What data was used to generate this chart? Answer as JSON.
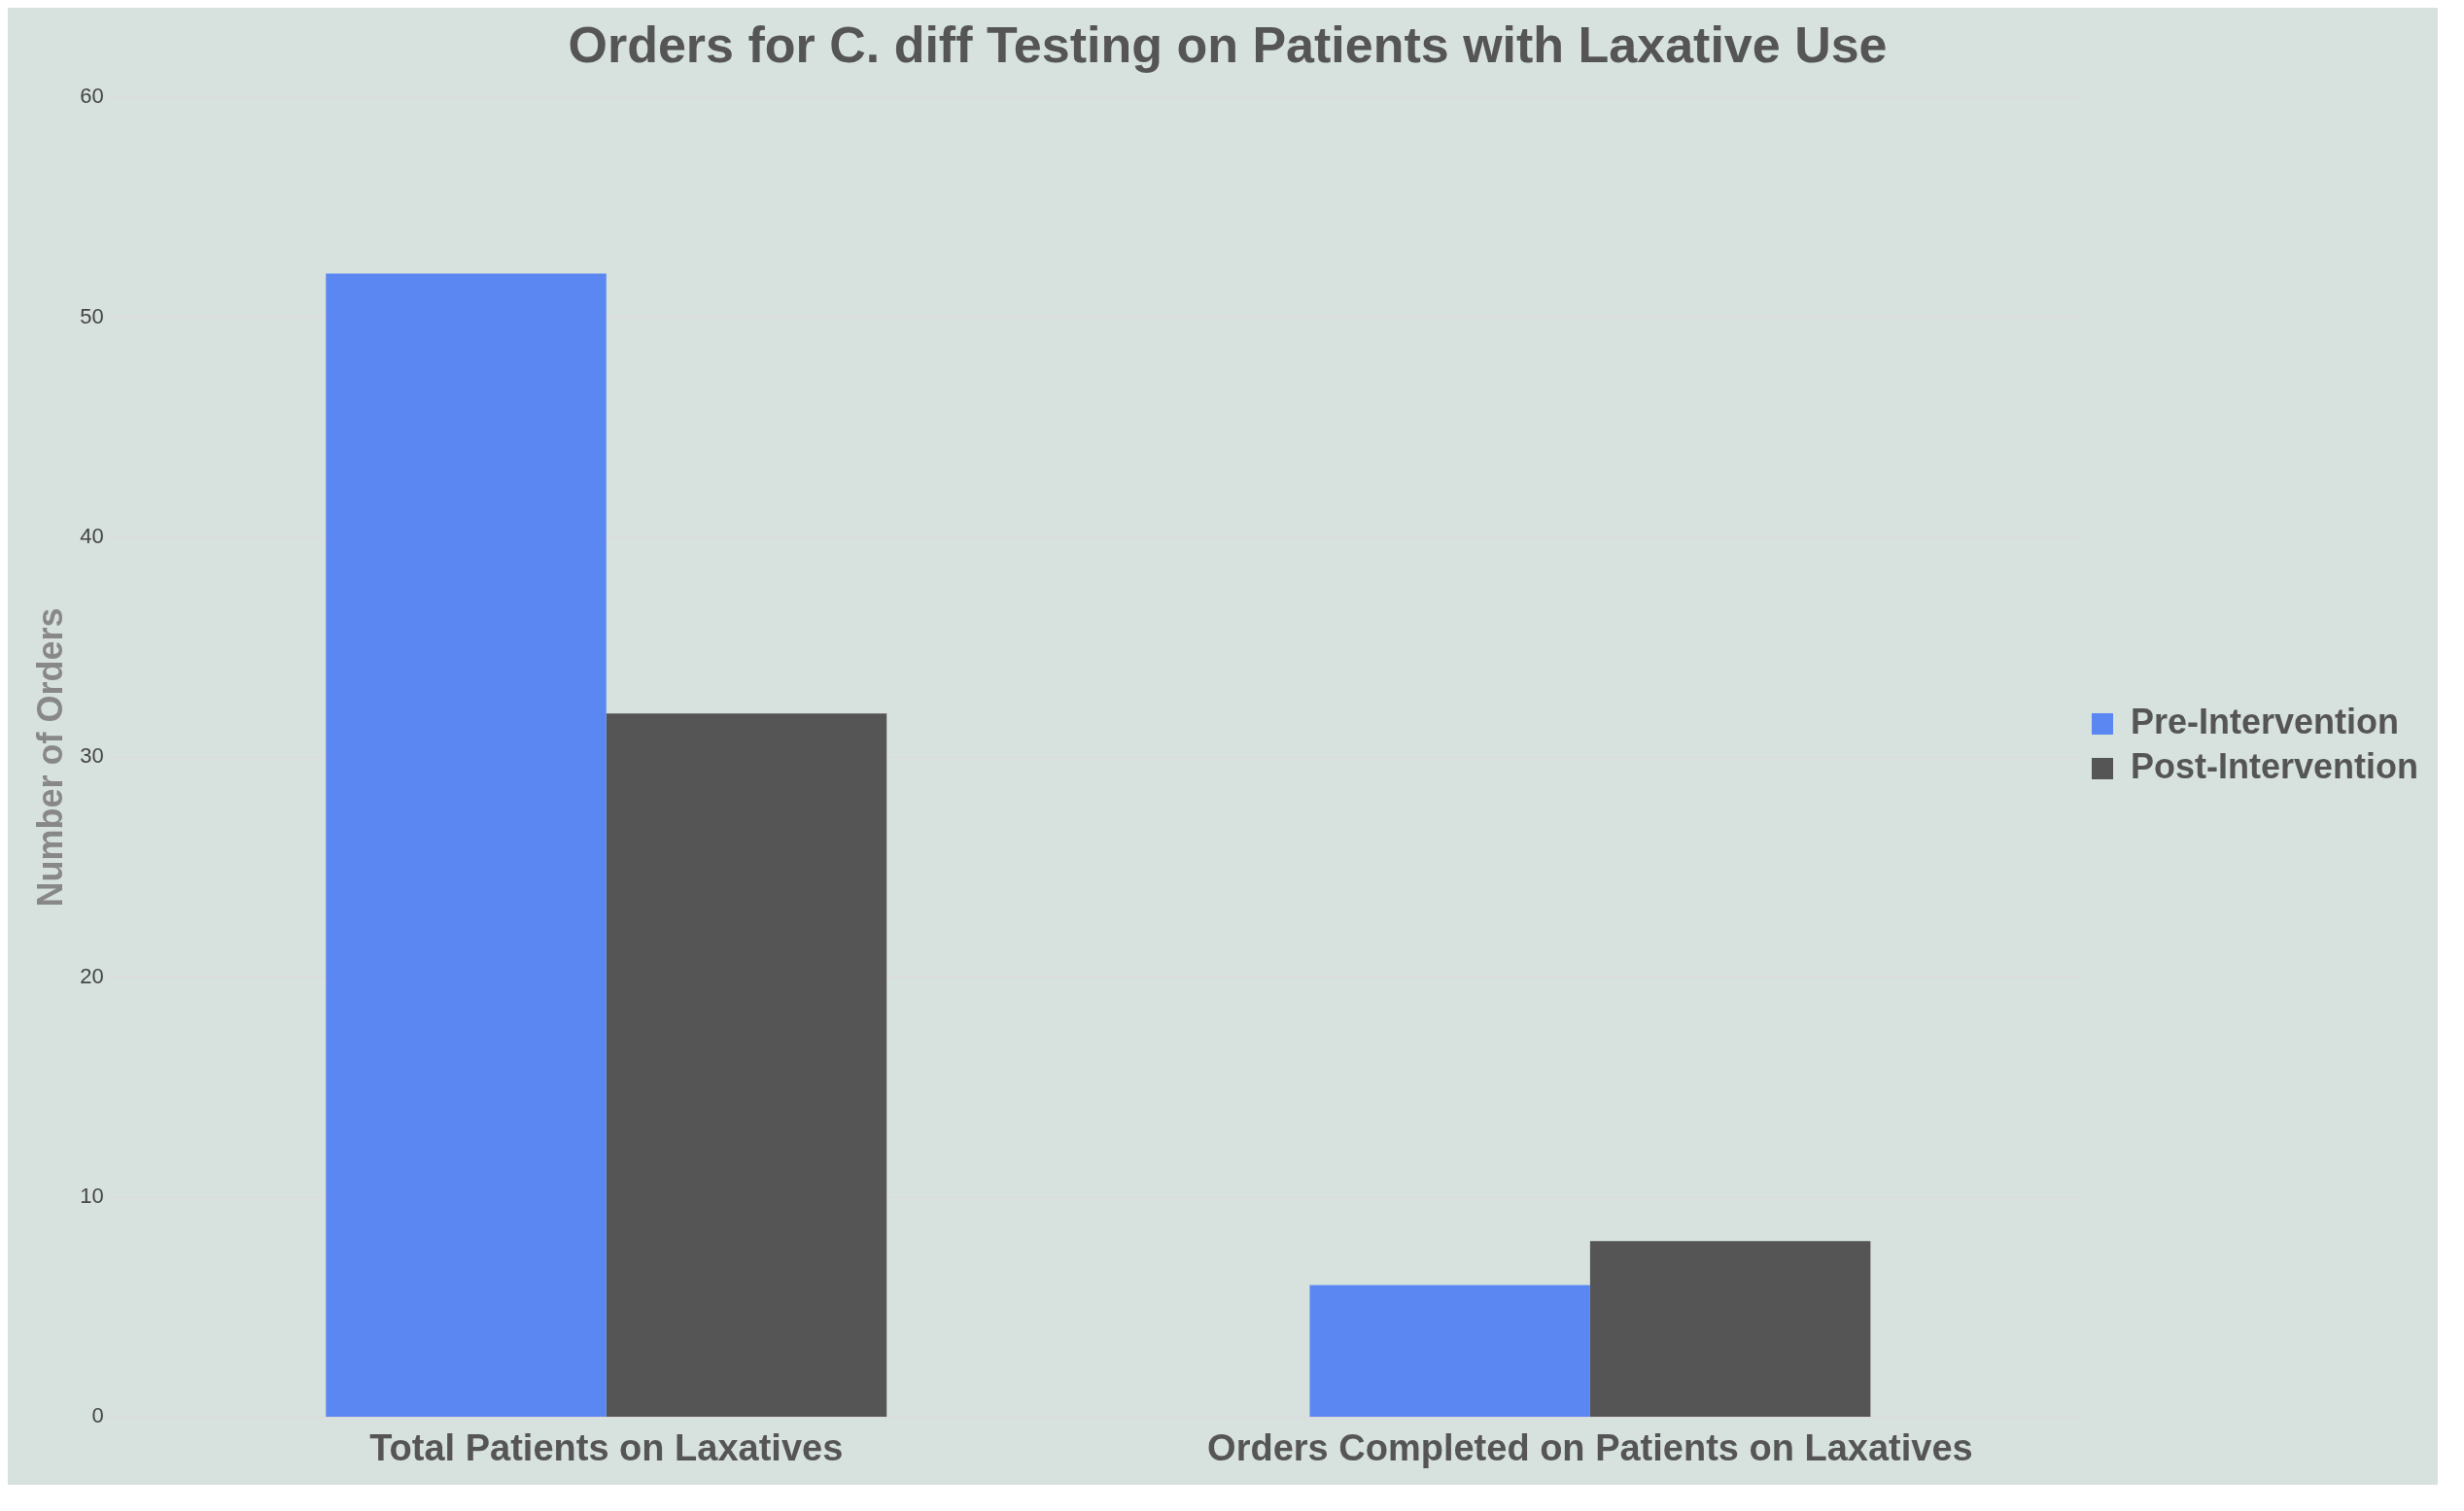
{
  "chart_data": {
    "type": "bar",
    "title": "Orders for C. diff Testing on Patients with Laxative Use",
    "ylabel": "Number of Orders",
    "categories": [
      "Total Patients on Laxatives",
      "Orders Completed on Patients on Laxatives"
    ],
    "series": [
      {
        "name": "Pre-Intervention",
        "color": "#5b87f2",
        "values": [
          52,
          6
        ]
      },
      {
        "name": "Post-Intervention",
        "color": "#555555",
        "values": [
          32,
          8
        ]
      }
    ],
    "ylim": [
      0,
      60
    ],
    "yticks": [
      0,
      10,
      20,
      30,
      40,
      50,
      60
    ],
    "grid": "y",
    "legend": "right"
  }
}
